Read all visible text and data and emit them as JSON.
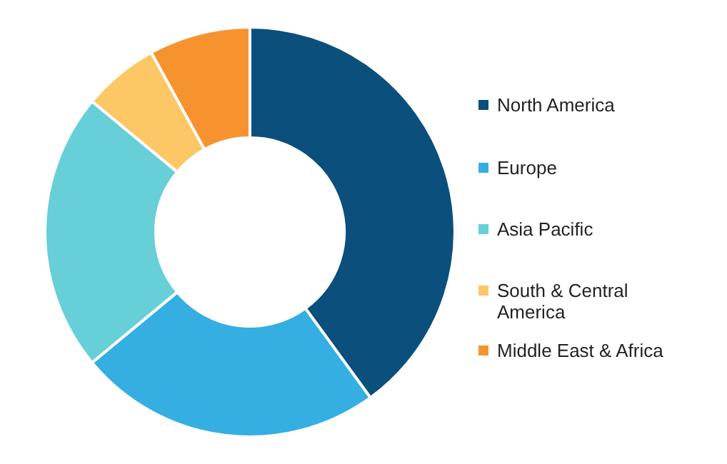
{
  "chart_data": {
    "type": "donut",
    "categories": [
      "North America",
      "Europe",
      "Asia Pacific",
      "South & Central America",
      "Middle East & Africa"
    ],
    "values": [
      40,
      24,
      22,
      6,
      8
    ],
    "colors": [
      "#0b4f7c",
      "#35aee2",
      "#66cfd8",
      "#fdc765",
      "#f7932e"
    ],
    "legend": "right"
  }
}
